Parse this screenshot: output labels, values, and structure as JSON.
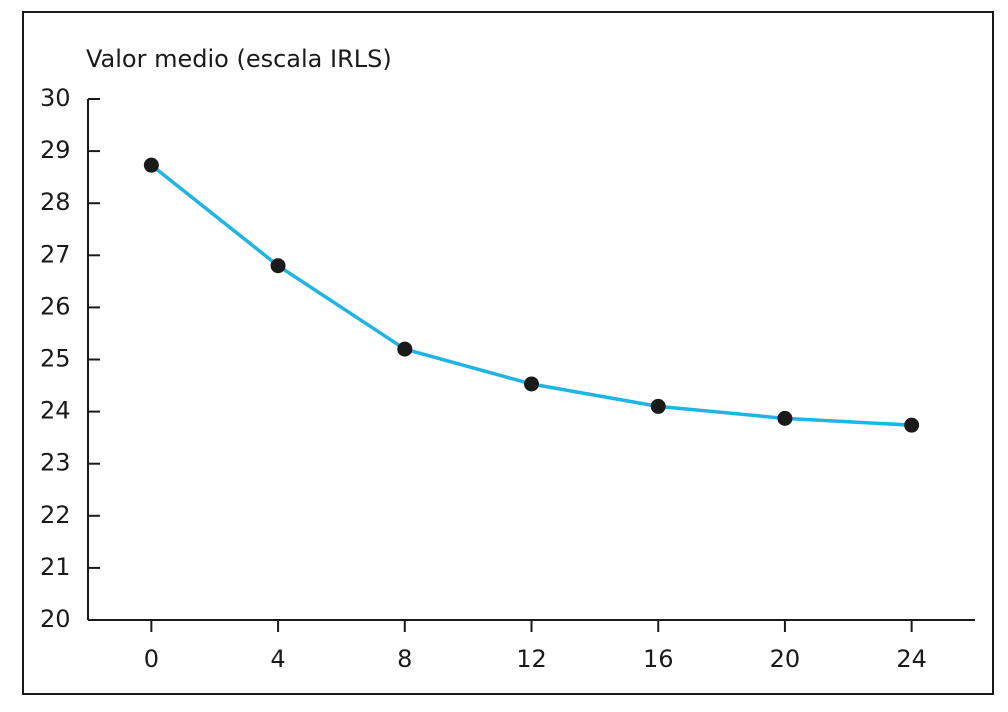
{
  "chart_data": {
    "type": "line",
    "y_label": "Valor medio (escala IRLS)",
    "x": [
      0,
      4,
      8,
      12,
      16,
      20,
      24
    ],
    "series": [
      {
        "color": "#1eb4e4",
        "marker_color": "#1a1a1a",
        "values": [
          28.73,
          26.8,
          25.2,
          24.53,
          24.1,
          23.87,
          23.74
        ]
      }
    ],
    "xlim": [
      -2,
      26
    ],
    "xticks": [
      0,
      4,
      8,
      12,
      16,
      20,
      24
    ],
    "ylim": [
      20,
      30
    ],
    "yticks": [
      20,
      21,
      22,
      23,
      24,
      25,
      26,
      27,
      28,
      29,
      30
    ],
    "grid": false
  }
}
